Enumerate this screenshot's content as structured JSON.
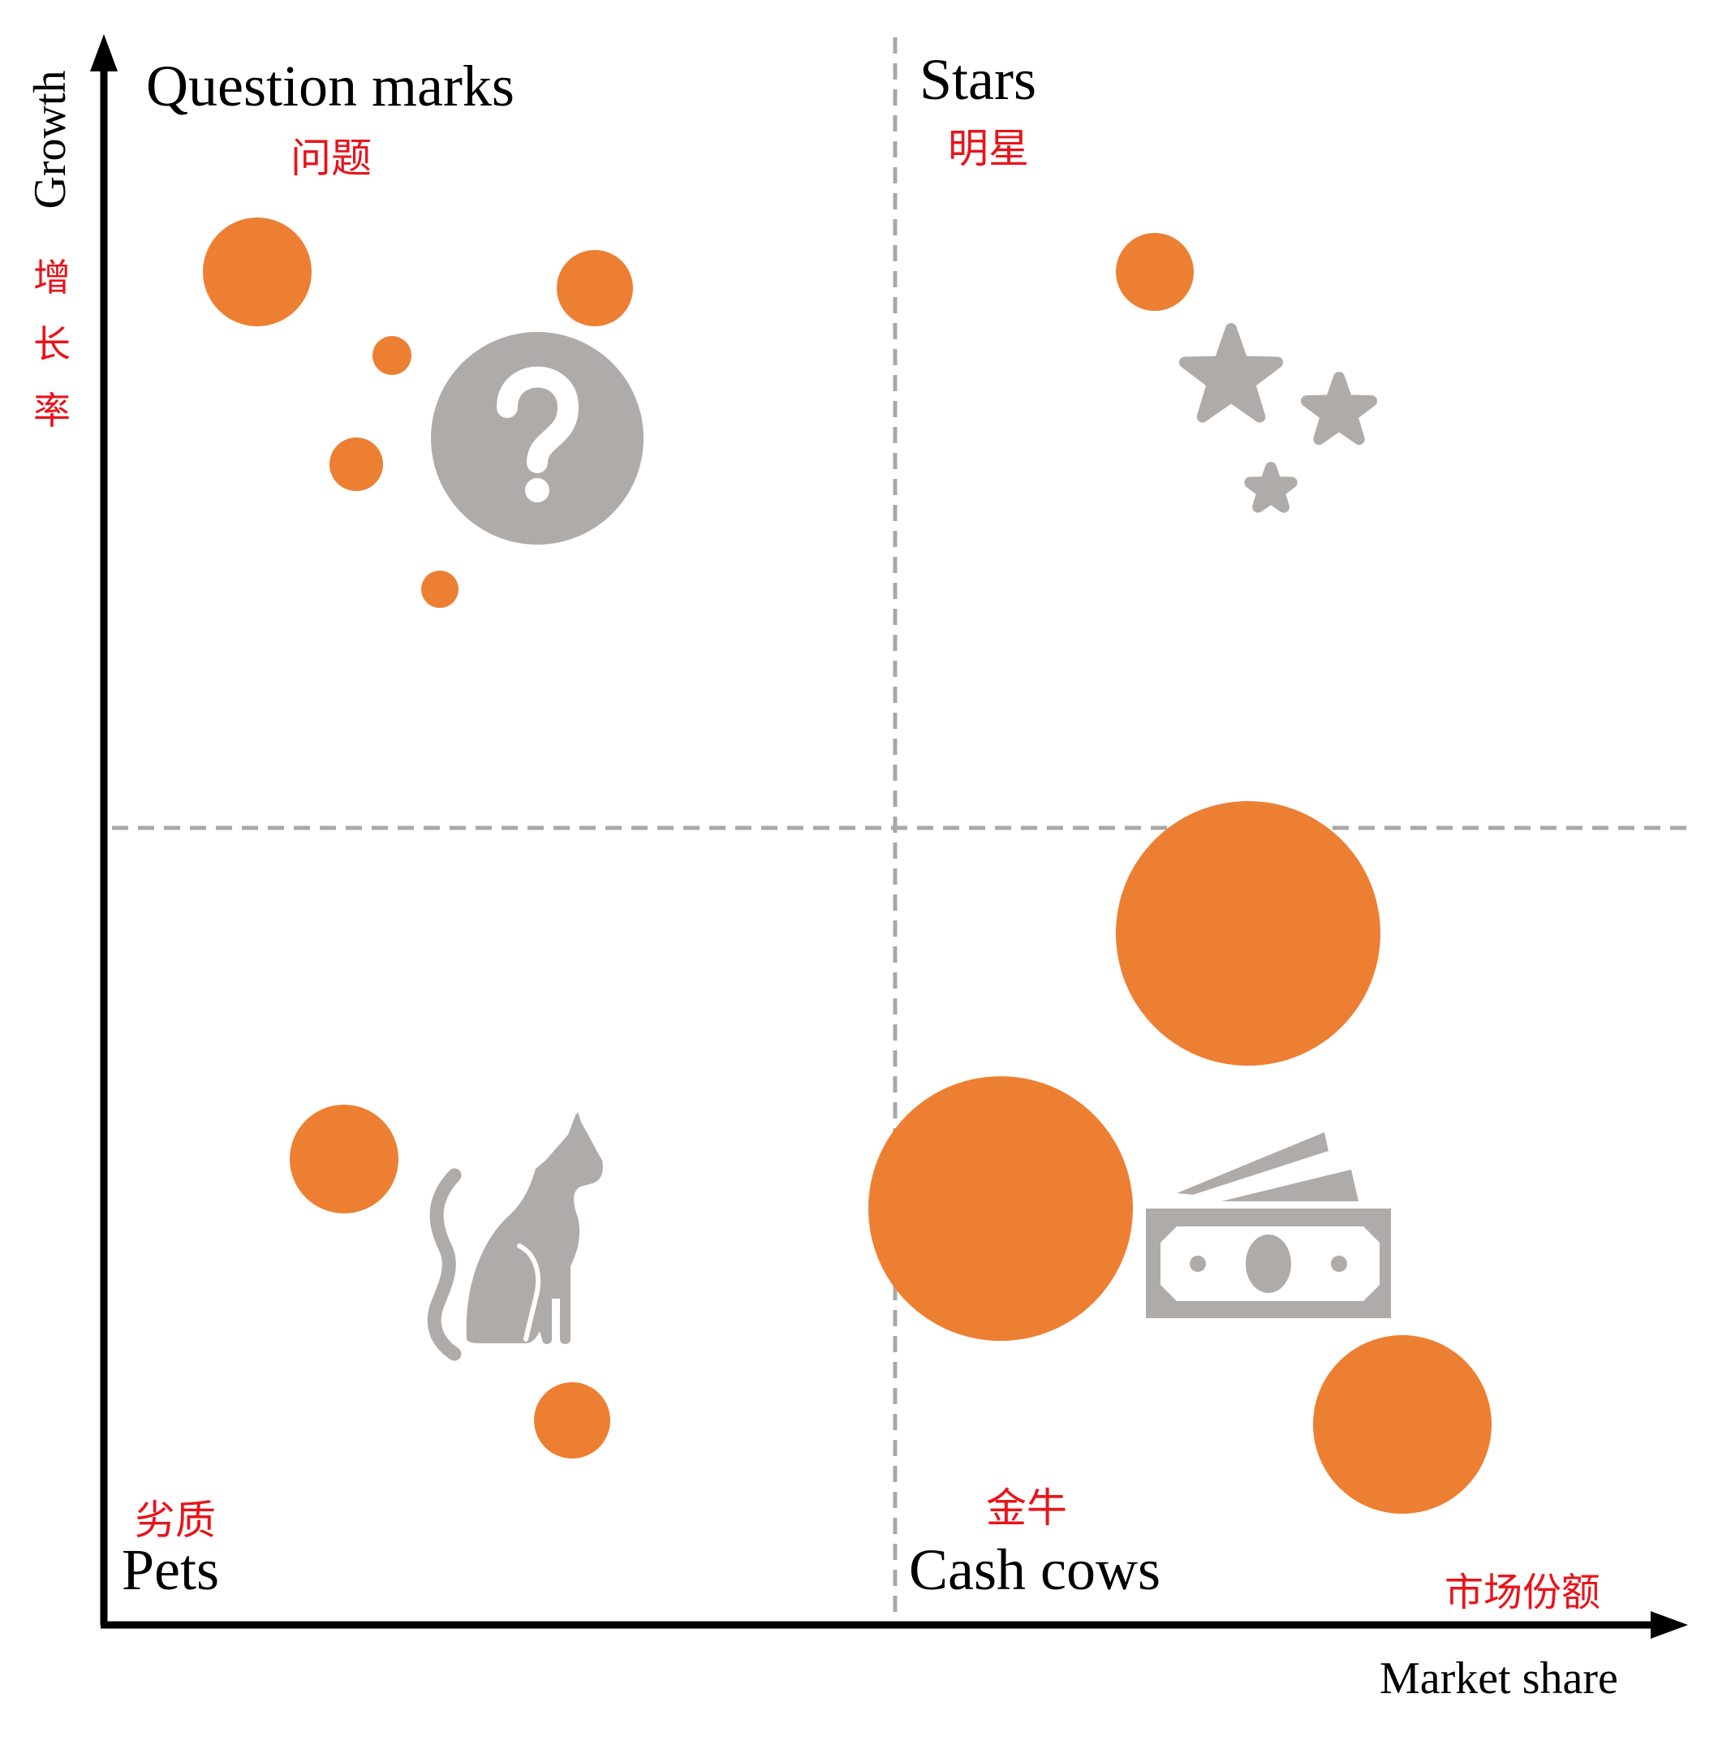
{
  "axes": {
    "y_label": "Growth",
    "y_label_cn": [
      "增",
      "长",
      "率"
    ],
    "x_label": "Market share",
    "x_label_cn": "市场份额"
  },
  "quadrants": {
    "question_marks": {
      "title": "Question marks",
      "title_cn": "问题",
      "icon": "question-icon"
    },
    "stars": {
      "title": "Stars",
      "title_cn": "明星",
      "icon": "stars-icon"
    },
    "pets": {
      "title": "Pets",
      "title_cn": "劣质",
      "icon": "cat-icon"
    },
    "cash_cows": {
      "title": "Cash cows",
      "title_cn": "金牛",
      "icon": "money-icon"
    }
  },
  "colors": {
    "bubble": "#ED7F33",
    "icon": "#AEABA9",
    "divider": "#A8A8A8",
    "axis": "#000000",
    "cn_text": "#E8141B",
    "en_text": "#000000"
  }
}
